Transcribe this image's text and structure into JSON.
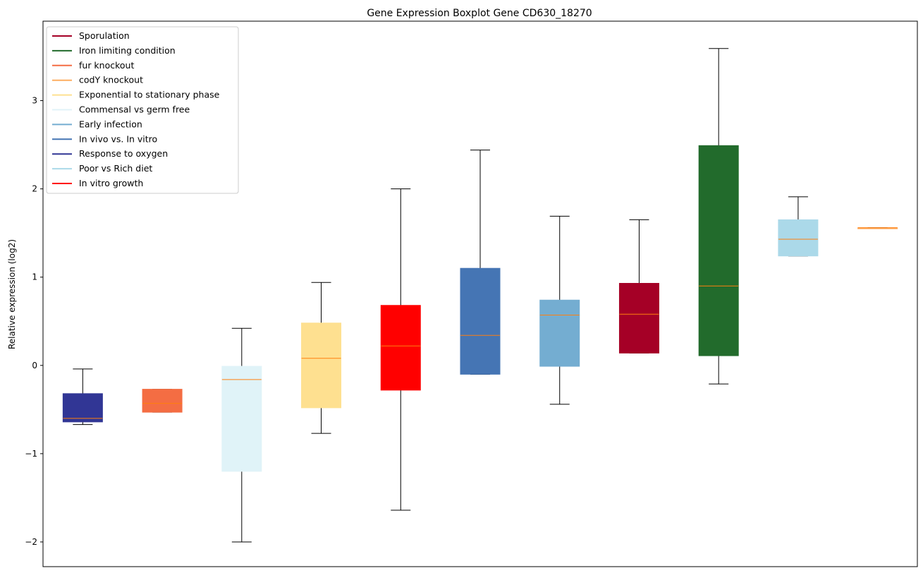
{
  "chart_data": {
    "type": "boxplot",
    "title": "Gene Expression Boxplot Gene CD630_18270",
    "xlabel": "",
    "ylabel": "Relative expression (log2)",
    "ylim": [
      -2.28,
      3.9
    ],
    "yticks": [
      -2,
      -1,
      0,
      1,
      2,
      3
    ],
    "ytick_labels": [
      "−2",
      "−1",
      "0",
      "1",
      "2",
      "3"
    ],
    "grid": false,
    "legend_position": "top-left",
    "legend": [
      {
        "label": "Sporulation",
        "color": "#a50026"
      },
      {
        "label": "Iron limiting condition",
        "color": "#226b2c"
      },
      {
        "label": "fur knockout",
        "color": "#f46d43"
      },
      {
        "label": "codY knockout",
        "color": "#fdae61"
      },
      {
        "label": "Exponential to stationary phase",
        "color": "#fee090"
      },
      {
        "label": "Commensal vs germ free",
        "color": "#e0f3f8"
      },
      {
        "label": "Early infection",
        "color": "#74add1"
      },
      {
        "label": "In vivo vs. In vitro",
        "color": "#4575b4"
      },
      {
        "label": "Response to oxygen",
        "color": "#313695"
      },
      {
        "label": "Poor vs Rich diet",
        "color": "#abd9e9"
      },
      {
        "label": "In vitro growth",
        "color": "#ff0000"
      }
    ],
    "series": [
      {
        "name": "Response to oxygen",
        "color": "#313695",
        "whislo": -0.67,
        "q1": -0.64,
        "med": -0.6,
        "q3": -0.32,
        "whishi": -0.04
      },
      {
        "name": "fur knockout",
        "color": "#f46d43",
        "whislo": -0.53,
        "q1": -0.53,
        "med": -0.43,
        "q3": -0.27,
        "whishi": -0.27
      },
      {
        "name": "Commensal vs germ free",
        "color": "#e0f3f8",
        "whislo": -2.0,
        "q1": -1.2,
        "med": -0.16,
        "q3": -0.01,
        "whishi": 0.42
      },
      {
        "name": "Exponential to stationary phase",
        "color": "#fee090",
        "whislo": -0.77,
        "q1": -0.48,
        "med": 0.08,
        "q3": 0.48,
        "whishi": 0.94
      },
      {
        "name": "In vitro growth",
        "color": "#ff0000",
        "whislo": -1.64,
        "q1": -0.28,
        "med": 0.22,
        "q3": 0.68,
        "whishi": 2.0
      },
      {
        "name": "In vivo vs. In vitro",
        "color": "#4575b4",
        "whislo": -0.1,
        "q1": -0.1,
        "med": 0.34,
        "q3": 1.1,
        "whishi": 2.44
      },
      {
        "name": "Early infection",
        "color": "#74add1",
        "whislo": -0.44,
        "q1": -0.01,
        "med": 0.57,
        "q3": 0.74,
        "whishi": 1.69
      },
      {
        "name": "Sporulation",
        "color": "#a50026",
        "whislo": 0.14,
        "q1": 0.14,
        "med": 0.58,
        "q3": 0.93,
        "whishi": 1.65
      },
      {
        "name": "Iron limiting condition",
        "color": "#226b2c",
        "whislo": -0.21,
        "q1": 0.11,
        "med": 0.9,
        "q3": 2.49,
        "whishi": 3.59
      },
      {
        "name": "Poor vs Rich diet",
        "color": "#abd9e9",
        "whislo": 1.24,
        "q1": 1.24,
        "med": 1.43,
        "q3": 1.65,
        "whishi": 1.91
      },
      {
        "name": "codY knockout",
        "color": "#fdae61",
        "whislo": 1.56,
        "q1": 1.56,
        "med": 1.56,
        "q3": 1.56,
        "whishi": 1.56
      }
    ],
    "median_color": "#ff7f0e"
  }
}
